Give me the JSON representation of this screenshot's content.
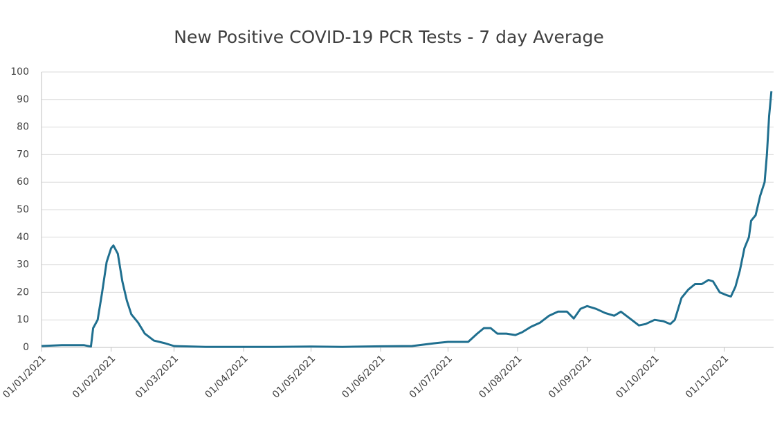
{
  "chart_data": {
    "type": "line",
    "title": "New Positive COVID-19 PCR Tests - 7 day Average",
    "x": [
      "01/01/2021",
      "10/01/2021",
      "20/01/2021",
      "23/01/2021",
      "24/01/2021",
      "26/01/2021",
      "28/01/2021",
      "30/01/2021",
      "01/02/2021",
      "02/02/2021",
      "04/02/2021",
      "06/02/2021",
      "08/02/2021",
      "10/02/2021",
      "13/02/2021",
      "16/02/2021",
      "20/02/2021",
      "25/02/2021",
      "01/03/2021",
      "15/03/2021",
      "01/04/2021",
      "15/04/2021",
      "01/05/2021",
      "15/05/2021",
      "01/06/2021",
      "15/06/2021",
      "25/06/2021",
      "01/07/2021",
      "10/07/2021",
      "14/07/2021",
      "17/07/2021",
      "20/07/2021",
      "23/07/2021",
      "27/07/2021",
      "31/07/2021",
      "03/08/2021",
      "07/08/2021",
      "11/08/2021",
      "15/08/2021",
      "19/08/2021",
      "23/08/2021",
      "26/08/2021",
      "29/08/2021",
      "01/09/2021",
      "05/09/2021",
      "09/09/2021",
      "13/09/2021",
      "16/09/2021",
      "20/09/2021",
      "24/09/2021",
      "27/09/2021",
      "01/10/2021",
      "05/10/2021",
      "08/10/2021",
      "10/10/2021",
      "13/10/2021",
      "16/10/2021",
      "19/10/2021",
      "22/10/2021",
      "25/10/2021",
      "27/10/2021",
      "30/10/2021",
      "02/11/2021",
      "04/11/2021",
      "06/11/2021",
      "08/11/2021",
      "10/11/2021",
      "12/11/2021",
      "13/11/2021",
      "15/11/2021",
      "17/11/2021",
      "19/11/2021",
      "20/11/2021",
      "21/11/2021",
      "22/11/2021"
    ],
    "series": [
      {
        "name": "7 day Average",
        "color": "#1f6f8f",
        "values": [
          0.5,
          0.8,
          0.8,
          0.3,
          7,
          10,
          20,
          31,
          36,
          37,
          34,
          24,
          17,
          12,
          9,
          5,
          2.5,
          1.5,
          0.5,
          0.2,
          0.2,
          0.2,
          0.3,
          0.2,
          0.4,
          0.5,
          1.5,
          2,
          2,
          5,
          7,
          7,
          5,
          5,
          4.5,
          5.5,
          7.5,
          9,
          11.5,
          13,
          13,
          10.5,
          14,
          15,
          14,
          12.5,
          11.5,
          13,
          10.5,
          8,
          8.5,
          10,
          9.5,
          8.5,
          10,
          18,
          21,
          23,
          23,
          24.5,
          24,
          20,
          19,
          18.5,
          22,
          28,
          36,
          40,
          46,
          48,
          55,
          60,
          70,
          84,
          93
        ]
      }
    ],
    "xlim": [
      "01/01/2021",
      "23/11/2021"
    ],
    "xticks": [
      "01/01/2021",
      "01/02/2021",
      "01/03/2021",
      "01/04/2021",
      "01/05/2021",
      "01/06/2021",
      "01/07/2021",
      "01/08/2021",
      "01/09/2021",
      "01/10/2021",
      "01/11/2021"
    ],
    "ylim": [
      0,
      100
    ],
    "yticks": [
      0,
      10,
      20,
      30,
      40,
      50,
      60,
      70,
      80,
      90,
      100
    ],
    "grid": true
  }
}
